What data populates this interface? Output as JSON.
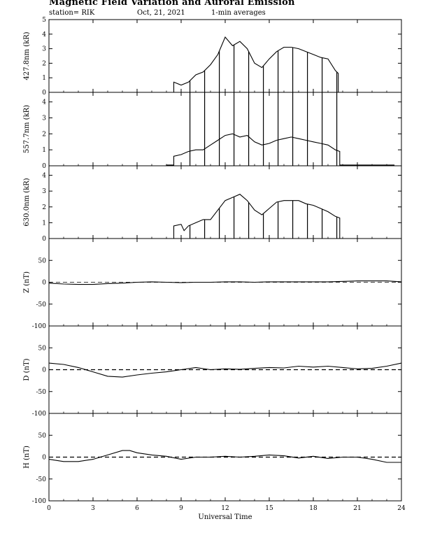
{
  "header": {
    "title": "Magnetic Field Variation and Auroral Emission",
    "station": "station= RIK",
    "date": "Oct, 21, 2021",
    "averaging": "1-min averages"
  },
  "chart_data": [
    {
      "type": "line",
      "ylabel": "427.8nm (kR)",
      "ylim": [
        0,
        5
      ],
      "yticks": [
        0,
        1,
        2,
        3,
        4,
        5
      ],
      "points": [
        [
          0,
          0
        ],
        [
          8.5,
          0
        ],
        [
          8.5,
          0.7
        ],
        [
          9,
          0.5
        ],
        [
          9.5,
          0.7
        ],
        [
          10,
          1.2
        ],
        [
          10.5,
          1.4
        ],
        [
          11,
          1.9
        ],
        [
          11.5,
          2.6
        ],
        [
          12,
          3.8
        ],
        [
          12.5,
          3.2
        ],
        [
          13,
          3.5
        ],
        [
          13.5,
          3.0
        ],
        [
          14,
          2.0
        ],
        [
          14.5,
          1.7
        ],
        [
          15,
          2.3
        ],
        [
          15.5,
          2.8
        ],
        [
          16,
          3.1
        ],
        [
          16.5,
          3.1
        ],
        [
          17,
          3.0
        ],
        [
          17.5,
          2.8
        ],
        [
          18,
          2.6
        ],
        [
          18.5,
          2.4
        ],
        [
          19,
          2.3
        ],
        [
          19.5,
          1.5
        ],
        [
          19.7,
          1.3
        ],
        [
          19.7,
          0
        ],
        [
          24,
          0
        ]
      ],
      "spikes_x": [
        9.6,
        10.6,
        11.6,
        12.6,
        13.6,
        14.6,
        15.6,
        16.6,
        17.6,
        18.6,
        19.6
      ],
      "spike_to": "curve"
    },
    {
      "type": "line",
      "ylabel": "557.7nm (kR)",
      "ylim": [
        0,
        4.6
      ],
      "yticks": [
        0,
        1,
        2,
        3,
        4
      ],
      "points": [
        [
          0,
          0
        ],
        [
          8,
          0
        ],
        [
          8,
          0.05
        ],
        [
          8.5,
          0.05
        ],
        [
          8.5,
          0.6
        ],
        [
          9,
          0.7
        ],
        [
          9.5,
          0.9
        ],
        [
          10,
          1.0
        ],
        [
          10.5,
          1.0
        ],
        [
          11,
          1.3
        ],
        [
          11.5,
          1.6
        ],
        [
          12,
          1.9
        ],
        [
          12.5,
          2.0
        ],
        [
          13,
          1.8
        ],
        [
          13.5,
          1.9
        ],
        [
          14,
          1.5
        ],
        [
          14.5,
          1.3
        ],
        [
          15,
          1.4
        ],
        [
          15.5,
          1.6
        ],
        [
          16,
          1.7
        ],
        [
          16.5,
          1.8
        ],
        [
          17,
          1.7
        ],
        [
          17.5,
          1.6
        ],
        [
          18,
          1.5
        ],
        [
          18.5,
          1.4
        ],
        [
          19,
          1.3
        ],
        [
          19.5,
          1.0
        ],
        [
          19.8,
          0.9
        ],
        [
          19.8,
          0.05
        ],
        [
          23.5,
          0.05
        ],
        [
          23.5,
          0
        ],
        [
          24,
          0
        ]
      ],
      "spikes_x": [
        9.6,
        10.6,
        11.6,
        12.6,
        13.6,
        14.6,
        15.6,
        16.6,
        17.6,
        18.6,
        19.6
      ],
      "spike_to": "top"
    },
    {
      "type": "line",
      "ylabel": "630.0nm (kR)",
      "ylim": [
        0,
        4.6
      ],
      "yticks": [
        0,
        1,
        2,
        3,
        4
      ],
      "points": [
        [
          0,
          0
        ],
        [
          8.5,
          0
        ],
        [
          8.5,
          0.8
        ],
        [
          9,
          0.9
        ],
        [
          9.2,
          0.5
        ],
        [
          9.5,
          0.8
        ],
        [
          10,
          1.0
        ],
        [
          10.5,
          1.2
        ],
        [
          11,
          1.2
        ],
        [
          11.5,
          1.8
        ],
        [
          12,
          2.4
        ],
        [
          12.5,
          2.6
        ],
        [
          13,
          2.8
        ],
        [
          13.5,
          2.4
        ],
        [
          14,
          1.8
        ],
        [
          14.5,
          1.5
        ],
        [
          15,
          1.9
        ],
        [
          15.5,
          2.3
        ],
        [
          16,
          2.4
        ],
        [
          16.5,
          2.4
        ],
        [
          17,
          2.4
        ],
        [
          17.5,
          2.2
        ],
        [
          18,
          2.1
        ],
        [
          18.5,
          1.9
        ],
        [
          19,
          1.7
        ],
        [
          19.5,
          1.4
        ],
        [
          19.8,
          1.3
        ],
        [
          19.8,
          0
        ],
        [
          24,
          0
        ]
      ],
      "spikes_x": [
        9.6,
        10.6,
        11.6,
        12.6,
        13.6,
        14.6,
        15.6,
        16.6,
        17.6,
        18.6,
        19.6
      ],
      "spike_to": "curve"
    },
    {
      "type": "line",
      "ylabel": "Z (nT)",
      "ylim": [
        -100,
        100
      ],
      "yticks": [
        -100,
        -50,
        0,
        50
      ],
      "points": [
        [
          0,
          -2
        ],
        [
          1,
          -4
        ],
        [
          2,
          -5
        ],
        [
          3,
          -5
        ],
        [
          4,
          -3
        ],
        [
          5,
          -2
        ],
        [
          6,
          0
        ],
        [
          7,
          1
        ],
        [
          8,
          0
        ],
        [
          9,
          -1
        ],
        [
          10,
          0
        ],
        [
          11,
          0
        ],
        [
          12,
          1
        ],
        [
          13,
          1
        ],
        [
          14,
          0
        ],
        [
          15,
          1
        ],
        [
          16,
          1
        ],
        [
          17,
          1
        ],
        [
          18,
          1
        ],
        [
          19,
          1
        ],
        [
          20,
          2
        ],
        [
          21,
          3
        ],
        [
          22,
          3
        ],
        [
          23,
          3
        ],
        [
          24,
          1
        ]
      ]
    },
    {
      "type": "line",
      "ylabel": "D (nT)",
      "ylim": [
        -100,
        100
      ],
      "yticks": [
        -100,
        -50,
        0,
        50
      ],
      "points": [
        [
          0,
          15
        ],
        [
          1,
          12
        ],
        [
          2,
          5
        ],
        [
          3,
          -5
        ],
        [
          4,
          -15
        ],
        [
          5,
          -17
        ],
        [
          6,
          -12
        ],
        [
          7,
          -8
        ],
        [
          8,
          -5
        ],
        [
          9,
          0
        ],
        [
          10,
          5
        ],
        [
          11,
          0
        ],
        [
          12,
          2
        ],
        [
          13,
          1
        ],
        [
          14,
          3
        ],
        [
          15,
          5
        ],
        [
          16,
          4
        ],
        [
          17,
          8
        ],
        [
          18,
          6
        ],
        [
          19,
          8
        ],
        [
          20,
          5
        ],
        [
          21,
          2
        ],
        [
          22,
          3
        ],
        [
          23,
          8
        ],
        [
          24,
          15
        ]
      ]
    },
    {
      "type": "line",
      "ylabel": "H (nT)",
      "ylim": [
        -100,
        100
      ],
      "yticks": [
        -100,
        -50,
        0,
        50
      ],
      "xlabel": "Universal Time",
      "xticks": [
        0,
        3,
        6,
        9,
        12,
        15,
        18,
        21,
        24
      ],
      "points": [
        [
          0,
          -5
        ],
        [
          1,
          -10
        ],
        [
          2,
          -10
        ],
        [
          3,
          -5
        ],
        [
          4,
          5
        ],
        [
          5,
          15
        ],
        [
          5.5,
          15
        ],
        [
          6,
          10
        ],
        [
          7,
          5
        ],
        [
          8,
          2
        ],
        [
          9,
          -5
        ],
        [
          10,
          0
        ],
        [
          11,
          0
        ],
        [
          12,
          2
        ],
        [
          13,
          0
        ],
        [
          14,
          2
        ],
        [
          15,
          5
        ],
        [
          16,
          3
        ],
        [
          17,
          -2
        ],
        [
          18,
          2
        ],
        [
          19,
          -3
        ],
        [
          20,
          0
        ],
        [
          21,
          0
        ],
        [
          22,
          -5
        ],
        [
          23,
          -12
        ],
        [
          24,
          -12
        ]
      ]
    }
  ]
}
